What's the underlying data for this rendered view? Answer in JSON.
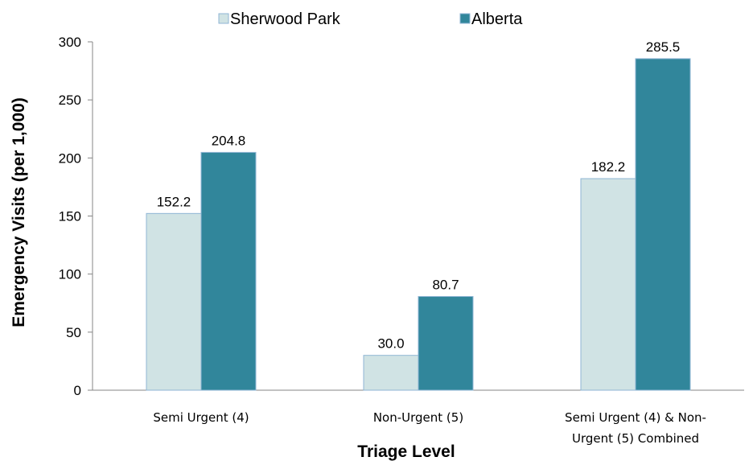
{
  "chart_data": {
    "type": "bar",
    "title": "",
    "xlabel": "Triage Level",
    "ylabel": "Emergency Visits (per 1,000)",
    "ylim": [
      0,
      300
    ],
    "yticks": [
      0,
      50,
      100,
      150,
      200,
      250,
      300
    ],
    "categories": [
      [
        "Semi Urgent (4)"
      ],
      [
        "Non-Urgent (5)"
      ],
      [
        "Semi Urgent (4) & Non-",
        "Urgent (5) Combined"
      ]
    ],
    "series": [
      {
        "name": "Sherwood Park",
        "color": "#d0e3e4",
        "values": [
          152.2,
          30.0,
          182.2
        ],
        "labels": [
          "152.2",
          "30.0",
          "182.2"
        ]
      },
      {
        "name": "Alberta",
        "color": "#31869b",
        "values": [
          204.8,
          80.7,
          285.5
        ],
        "labels": [
          "204.8",
          "80.7",
          "285.5"
        ]
      }
    ],
    "legend_position": "top",
    "grid": false
  }
}
